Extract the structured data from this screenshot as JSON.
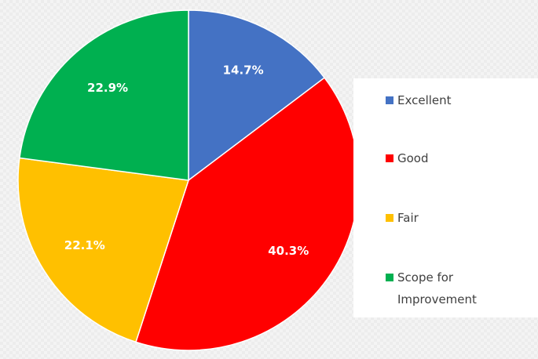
{
  "chart_data": {
    "type": "pie",
    "categories": [
      "Excellent",
      "Good",
      "Fair",
      "Scope for Improvement"
    ],
    "values": [
      14.7,
      40.3,
      22.1,
      22.9
    ],
    "value_labels": [
      "14.7%",
      "40.3%",
      "22.1%",
      "22.9%"
    ],
    "colors": [
      "#4472c4",
      "#ff0000",
      "#ffc000",
      "#00b050"
    ],
    "legend": "right"
  }
}
